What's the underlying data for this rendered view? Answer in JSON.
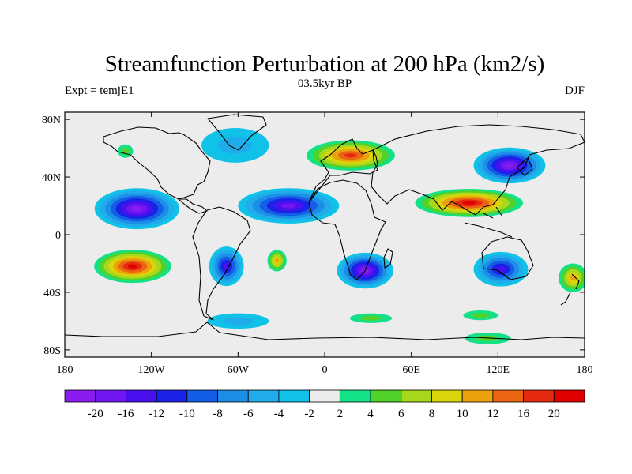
{
  "figure": {
    "title": "Streamfunction Perturbation at 200 hPa (km2/s)",
    "left_label": "Expt = temjE1",
    "center_label": "03.5kyr BP",
    "right_label": "DJF"
  },
  "lon_ticks": [
    {
      "value": -180,
      "label": "180"
    },
    {
      "value": -120,
      "label": "120W"
    },
    {
      "value": -60,
      "label": "60W"
    },
    {
      "value": 0,
      "label": "0"
    },
    {
      "value": 60,
      "label": "60E"
    },
    {
      "value": 120,
      "label": "120E"
    },
    {
      "value": 180,
      "label": "180"
    }
  ],
  "lat_ticks": [
    {
      "value": 80,
      "label": "80N"
    },
    {
      "value": 40,
      "label": "40N"
    },
    {
      "value": 0,
      "label": "0"
    },
    {
      "value": -40,
      "label": "40S"
    },
    {
      "value": -80,
      "label": "80S"
    }
  ],
  "colorbar": {
    "levels": [
      "-20",
      "-16",
      "-12",
      "-10",
      "-8",
      "-6",
      "-4",
      "-2",
      "2",
      "4",
      "6",
      "8",
      "10",
      "12",
      "16",
      "20"
    ],
    "colors": [
      "#8a1cf0",
      "#7016f0",
      "#4a10ee",
      "#1a22e8",
      "#145ee6",
      "#1c8ee8",
      "#20acea",
      "#10c2e8",
      "#ececec",
      "#14e088",
      "#50d22a",
      "#a8d81e",
      "#dcd40a",
      "#eaa20c",
      "#ea6412",
      "#e62a12",
      "#e00000"
    ]
  },
  "field": {
    "background_color": "#ececec",
    "anomalies": [
      {
        "lon": -130,
        "lat": 18,
        "rlon": 33,
        "rlat": 16,
        "value": -21
      },
      {
        "lon": -25,
        "lat": 20,
        "rlon": 40,
        "rlat": 14,
        "value": -20
      },
      {
        "lon": 128,
        "lat": 48,
        "rlon": 28,
        "rlat": 14,
        "value": -22
      },
      {
        "lon": -62,
        "lat": 62,
        "rlon": 35,
        "rlat": 18,
        "value": -6
      },
      {
        "lon": 28,
        "lat": -25,
        "rlon": 22,
        "rlat": 14,
        "value": -21
      },
      {
        "lon": -68,
        "lat": -22,
        "rlon": 14,
        "rlat": 16,
        "value": -13
      },
      {
        "lon": 122,
        "lat": -24,
        "rlon": 22,
        "rlat": 14,
        "value": -13
      },
      {
        "lon": -60,
        "lat": -60,
        "rlon": 32,
        "rlat": 8,
        "value": -5
      },
      {
        "lon": 100,
        "lat": 22,
        "rlon": 42,
        "rlat": 11,
        "value": 24
      },
      {
        "lon": -133,
        "lat": -22,
        "rlon": 30,
        "rlat": 13,
        "value": 24
      },
      {
        "lon": 18,
        "lat": 55,
        "rlon": 35,
        "rlat": 12,
        "value": 17
      },
      {
        "lon": -33,
        "lat": -18,
        "rlon": 8,
        "rlat": 9,
        "value": 11
      },
      {
        "lon": 172,
        "lat": -30,
        "rlon": 12,
        "rlat": 12,
        "value": 10
      },
      {
        "lon": -138,
        "lat": 58,
        "rlon": 8,
        "rlat": 7,
        "value": 5
      },
      {
        "lon": 32,
        "lat": -58,
        "rlon": 22,
        "rlat": 5,
        "value": 4
      },
      {
        "lon": 113,
        "lat": -72,
        "rlon": 24,
        "rlat": 6,
        "value": 4
      },
      {
        "lon": 108,
        "lat": -56,
        "rlon": 18,
        "rlat": 5,
        "value": 4
      }
    ]
  }
}
